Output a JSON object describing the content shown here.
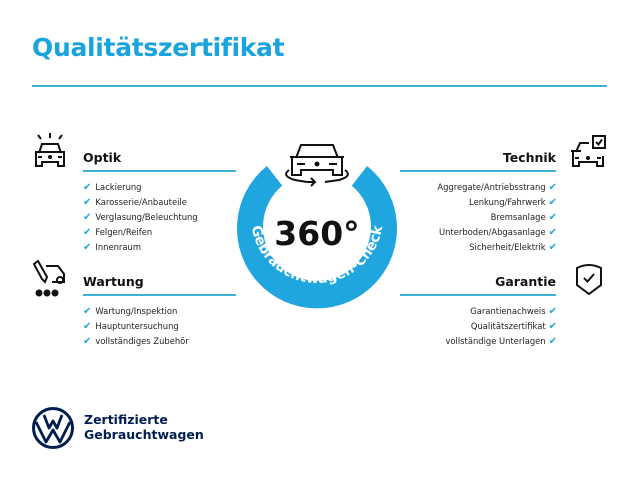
{
  "title": "Qualitätszertifikat",
  "badge": {
    "value": "360°",
    "arc_text": "Gebrauchtwagen-Check"
  },
  "colors": {
    "accent": "#1fa6df",
    "brand_dark": "#001e50"
  },
  "sections": {
    "optik": {
      "icon": "car-lights-icon",
      "heading": "Optik",
      "items": [
        "Lackierung",
        "Karosserie/Anbauteile",
        "Verglasung/Beleuchtung",
        "Felgen/Reifen",
        "Innenraum"
      ]
    },
    "wartung": {
      "icon": "service-car-icon",
      "heading": "Wartung",
      "items": [
        "Wartung/Inspektion",
        "Hauptuntersuchung",
        "vollständiges Zubehör"
      ]
    },
    "technik": {
      "icon": "car-checkbox-icon",
      "heading": "Technik",
      "items": [
        "Aggregate/Antriebsstrang",
        "Lenkung/Fahrwerk",
        "Bremsanlage",
        "Unterboden/Abgasanlage",
        "Sicherheit/Elektrik"
      ]
    },
    "garantie": {
      "icon": "shield-check-icon",
      "heading": "Garantie",
      "items": [
        "Garantienachweis",
        "Qualitätszertifikat",
        "vollständige Unterlagen"
      ]
    }
  },
  "check_mark": "✔",
  "footer": {
    "line1": "Zertifizierte",
    "line2": "Gebrauchtwagen"
  }
}
